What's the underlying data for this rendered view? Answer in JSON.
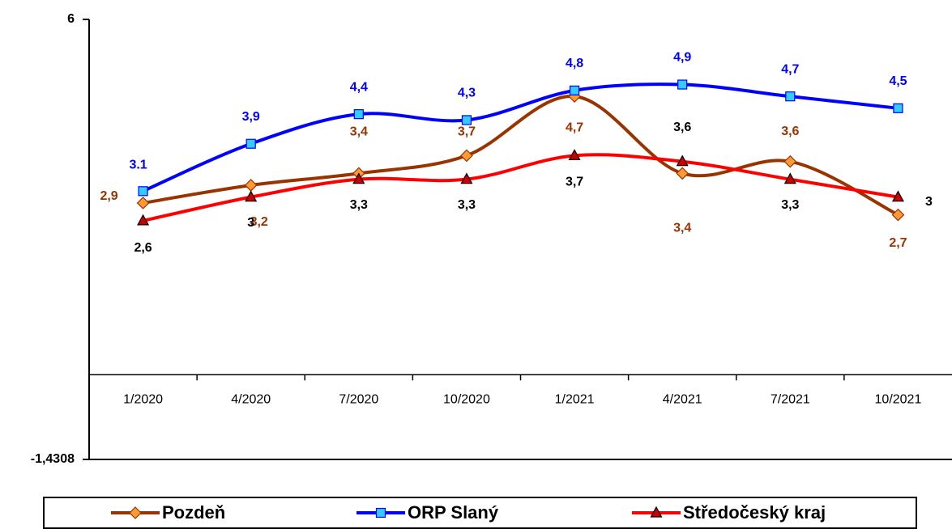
{
  "chart_data": {
    "type": "line",
    "categories": [
      "1/2020",
      "4/2020",
      "7/2020",
      "10/2020",
      "1/2021",
      "4/2021",
      "7/2021",
      "10/2021"
    ],
    "series": [
      {
        "name": "Pozdeň",
        "color": "#993300",
        "marker_color": "#ff9933",
        "label_color": "#993300",
        "values": [
          2.9,
          3.2,
          3.4,
          3.7,
          4.7,
          3.4,
          3.6,
          2.7
        ],
        "value_labels": [
          "2,9",
          "3,2",
          "3,4",
          "3,7",
          "4,7",
          "3,4",
          "3,6",
          "2,7"
        ]
      },
      {
        "name": "ORP Slaný",
        "color": "#0000ff",
        "marker_color": "#33ccff",
        "label_color": "#0000ff",
        "values": [
          3.1,
          3.9,
          4.4,
          4.3,
          4.8,
          4.9,
          4.7,
          4.5
        ],
        "value_labels": [
          "3.1",
          "3,9",
          "4,4",
          "4,3",
          "4,8",
          "4,9",
          "4,7",
          "4,5"
        ]
      },
      {
        "name": "Středočeský kraj",
        "color": "#ff0000",
        "marker_color": "#cc0000",
        "label_color": "#000000",
        "values": [
          2.6,
          3.0,
          3.3,
          3.3,
          3.7,
          3.6,
          3.3,
          3.0
        ],
        "value_labels": [
          "2,6",
          "3",
          "3,3",
          "3,3",
          "3,7",
          "3,6",
          "3,3",
          "3"
        ]
      }
    ],
    "ylim": [
      -1.4308,
      6
    ],
    "yticks": [
      6,
      {
        "value": -1.4308,
        "label": "-1,4308"
      }
    ]
  }
}
